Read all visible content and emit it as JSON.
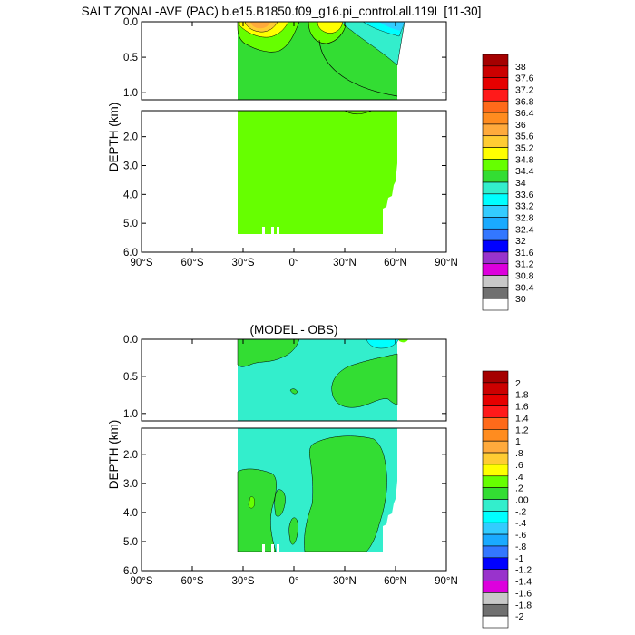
{
  "figure": {
    "title": "SALT ZONAL-AVE (PAC) b.e15.B1850.f09_g16.pi_control.all.119L [11-30]"
  },
  "chart_data": [
    {
      "type": "heatmap",
      "title": "SALT ZONAL-AVE (PAC) b.e15.B1850.f09_g16.pi_control.all.119L [11-30]",
      "xlabel": "",
      "ylabel": "DEPTH (km)",
      "xlim": [
        -90,
        90
      ],
      "x_ticks": [
        -90,
        -60,
        -30,
        0,
        30,
        60,
        90
      ],
      "x_tick_labels": [
        "90°S",
        "60°S",
        "30°S",
        "0°",
        "30°N",
        "60°N",
        "90°N"
      ],
      "upper_panel": {
        "ylim": [
          0.0,
          1.1
        ],
        "y_ticks": [
          0.0,
          0.5,
          1.0
        ],
        "y_tick_labels": [
          "0.0",
          "0.5",
          "1.0"
        ]
      },
      "lower_panel": {
        "ylim": [
          1.1,
          6.0
        ],
        "y_ticks": [
          2.0,
          3.0,
          4.0,
          5.0,
          6.0
        ],
        "y_tick_labels": [
          "2.0",
          "3.0",
          "4.0",
          "5.0",
          "6.0"
        ]
      },
      "data_extent": {
        "lat": [
          -32,
          62
        ],
        "max_depth_km": 5.4
      },
      "colorbar_levels": [
        "38",
        "37.6",
        "37.2",
        "36.8",
        "36.4",
        "36",
        "35.6",
        "35.2",
        "34.8",
        "34.4",
        "34",
        "33.6",
        "33.2",
        "32.8",
        "32.4",
        "32",
        "31.6",
        "31.2",
        "30.8",
        "30.4",
        "30"
      ],
      "colorbar_colors": [
        "#a50000",
        "#cc0000",
        "#e60000",
        "#ff1a1a",
        "#ff6a1a",
        "#ff8c1f",
        "#ffaa3c",
        "#ffcc33",
        "#ffff00",
        "#66ff00",
        "#33dd33",
        "#33eecc",
        "#00ffff",
        "#33ccff",
        "#1aaaff",
        "#3377ff",
        "#0000ff",
        "#9933cc",
        "#dd00dd",
        "#c8c8c8",
        "#707070",
        "#ffffff"
      ]
    },
    {
      "type": "heatmap",
      "title": "(MODEL - OBS)",
      "xlabel": "",
      "ylabel": "DEPTH (km)",
      "xlim": [
        -90,
        90
      ],
      "x_ticks": [
        -90,
        -60,
        -30,
        0,
        30,
        60,
        90
      ],
      "x_tick_labels": [
        "90°S",
        "60°S",
        "30°S",
        "0°",
        "30°N",
        "60°N",
        "90°N"
      ],
      "upper_panel": {
        "ylim": [
          0.0,
          1.1
        ],
        "y_ticks": [
          0.0,
          0.5,
          1.0
        ],
        "y_tick_labels": [
          "0.0",
          "0.5",
          "1.0"
        ]
      },
      "lower_panel": {
        "ylim": [
          1.1,
          6.0
        ],
        "y_ticks": [
          2.0,
          3.0,
          4.0,
          5.0,
          6.0
        ],
        "y_tick_labels": [
          "2.0",
          "3.0",
          "4.0",
          "5.0",
          "6.0"
        ]
      },
      "data_extent": {
        "lat": [
          -32,
          62
        ],
        "max_depth_km": 5.4
      },
      "colorbar_levels": [
        "2",
        "1.8",
        "1.6",
        "1.4",
        "1.2",
        "1",
        ".8",
        ".6",
        ".4",
        ".2",
        ".00",
        "-.2",
        "-.4",
        "-.6",
        "-.8",
        "-1",
        "-1.2",
        "-1.4",
        "-1.6",
        "-1.8",
        "-2"
      ],
      "colorbar_colors": [
        "#a50000",
        "#cc0000",
        "#e60000",
        "#ff1a1a",
        "#ff6a1a",
        "#ff8c1f",
        "#ffaa3c",
        "#ffcc33",
        "#ffff00",
        "#66ff00",
        "#33dd33",
        "#33eecc",
        "#00ffff",
        "#33ccff",
        "#1aaaff",
        "#3377ff",
        "#0000ff",
        "#9933cc",
        "#dd00dd",
        "#c8c8c8",
        "#707070",
        "#ffffff"
      ]
    }
  ]
}
